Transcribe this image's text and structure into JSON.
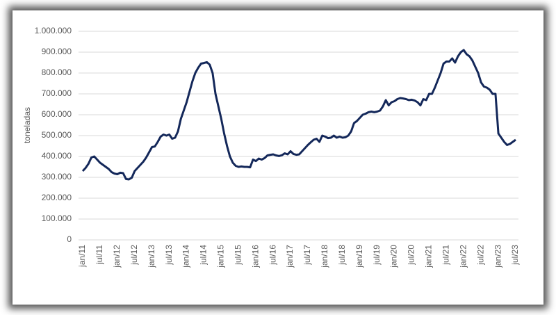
{
  "chart_data": {
    "type": "line",
    "y_label": "toneladas",
    "color": "#14285a",
    "grid": true,
    "ylim": [
      0,
      1000000
    ],
    "yticks": [
      0,
      {
        "value": 100000,
        "label": "100.000"
      },
      {
        "value": 200000,
        "label": "200.000"
      },
      {
        "value": 300000,
        "label": "300.000"
      },
      {
        "value": 400000,
        "label": "400.000"
      },
      {
        "value": 500000,
        "label": "500.000"
      },
      {
        "value": 600000,
        "label": "600.000"
      },
      {
        "value": 700000,
        "label": "700.000"
      },
      {
        "value": 800000,
        "label": "800.000"
      },
      {
        "value": 900000,
        "label": "900.000"
      },
      {
        "value": 1000000,
        "label": "1.000.000"
      }
    ],
    "categories": [
      "jan/11",
      null,
      null,
      null,
      null,
      null,
      "jul/11",
      null,
      null,
      null,
      null,
      null,
      "jan/12",
      null,
      null,
      null,
      null,
      null,
      "jul/12",
      null,
      null,
      null,
      null,
      null,
      "jan/13",
      null,
      null,
      null,
      null,
      null,
      "jul/13",
      null,
      null,
      null,
      null,
      null,
      "jan/14",
      null,
      null,
      null,
      null,
      null,
      "jul/14",
      null,
      null,
      null,
      null,
      null,
      "jan/15",
      null,
      null,
      null,
      null,
      null,
      "jul/15",
      null,
      null,
      null,
      null,
      null,
      "jan/16",
      null,
      null,
      null,
      null,
      null,
      "jul/16",
      null,
      null,
      null,
      null,
      null,
      "jan/17",
      null,
      null,
      null,
      null,
      null,
      "jul/17",
      null,
      null,
      null,
      null,
      null,
      "jan/18",
      null,
      null,
      null,
      null,
      null,
      "jul/18",
      null,
      null,
      null,
      null,
      null,
      "jan/19",
      null,
      null,
      null,
      null,
      null,
      "jul/19",
      null,
      null,
      null,
      null,
      null,
      "jan/20",
      null,
      null,
      null,
      null,
      null,
      "jul/20",
      null,
      null,
      null,
      null,
      null,
      "jan/21",
      null,
      null,
      null,
      null,
      null,
      "jul/21",
      null,
      null,
      null,
      null,
      null,
      "jan/22",
      null,
      null,
      null,
      null,
      null,
      "jul/22",
      null,
      null,
      null,
      null,
      null,
      "jan/23",
      null,
      null,
      null,
      null,
      null,
      "jul/23"
    ],
    "values": [
      330000,
      345000,
      365000,
      395000,
      400000,
      385000,
      370000,
      360000,
      350000,
      340000,
      325000,
      318000,
      315000,
      322000,
      320000,
      292000,
      290000,
      298000,
      330000,
      345000,
      360000,
      375000,
      395000,
      420000,
      445000,
      448000,
      470000,
      495000,
      505000,
      500000,
      505000,
      485000,
      490000,
      520000,
      580000,
      620000,
      660000,
      710000,
      760000,
      800000,
      825000,
      845000,
      848000,
      852000,
      840000,
      800000,
      700000,
      640000,
      580000,
      510000,
      450000,
      400000,
      370000,
      355000,
      350000,
      352000,
      350000,
      350000,
      348000,
      385000,
      378000,
      390000,
      385000,
      392000,
      405000,
      408000,
      410000,
      405000,
      402000,
      406000,
      415000,
      410000,
      425000,
      412000,
      408000,
      410000,
      425000,
      440000,
      455000,
      468000,
      480000,
      485000,
      470000,
      500000,
      495000,
      488000,
      490000,
      500000,
      490000,
      495000,
      490000,
      492000,
      500000,
      520000,
      560000,
      570000,
      585000,
      600000,
      605000,
      612000,
      615000,
      612000,
      615000,
      620000,
      640000,
      670000,
      645000,
      660000,
      665000,
      675000,
      680000,
      678000,
      675000,
      670000,
      672000,
      668000,
      660000,
      645000,
      675000,
      670000,
      700000,
      700000,
      730000,
      765000,
      800000,
      845000,
      855000,
      855000,
      870000,
      850000,
      880000,
      900000,
      910000,
      890000,
      880000,
      860000,
      830000,
      800000,
      755000,
      735000,
      730000,
      720000,
      700000,
      700000,
      510000,
      490000,
      470000,
      455000,
      460000,
      470000,
      480000
    ]
  }
}
